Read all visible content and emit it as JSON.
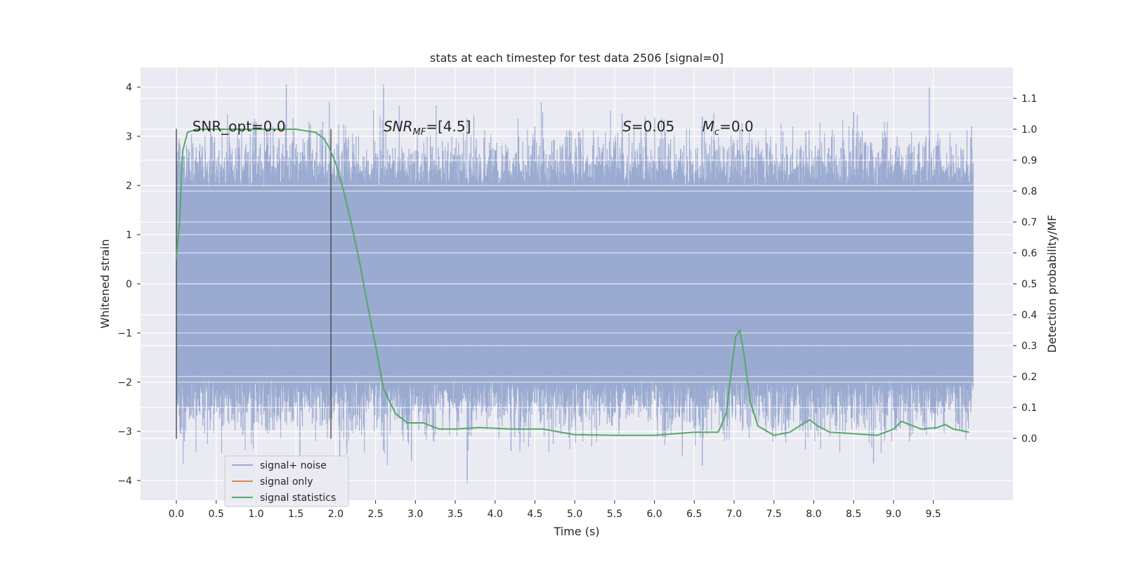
{
  "chart_data": {
    "type": "line",
    "title": "stats at each timestep for test data 2506 [signal=0]",
    "xlabel": "Time (s)",
    "ylabel": "Whitened strain",
    "y2label": "Detection probability/MF",
    "xlim": [
      -0.45,
      10.5
    ],
    "ylim": [
      -4.4,
      4.4
    ],
    "y2lim": [
      -0.2,
      1.2
    ],
    "xticks": [
      0.0,
      0.5,
      1.0,
      1.5,
      2.0,
      2.5,
      3.0,
      3.5,
      4.0,
      4.5,
      5.0,
      5.5,
      6.0,
      6.5,
      7.0,
      7.5,
      8.0,
      8.5,
      9.0,
      9.5
    ],
    "xtick_labels": [
      "0.0",
      "0.5",
      "1.0",
      "1.5",
      "2.0",
      "2.5",
      "3.0",
      "3.5",
      "4.0",
      "4.5",
      "5.0",
      "5.5",
      "6.0",
      "6.5",
      "7.0",
      "7.5",
      "8.0",
      "8.5",
      "9.0",
      "9.5"
    ],
    "yticks": [
      -4,
      -3,
      -2,
      -1,
      0,
      1,
      2,
      3,
      4
    ],
    "ytick_labels": [
      "−4",
      "−3",
      "−2",
      "−1",
      "0",
      "1",
      "2",
      "3",
      "4"
    ],
    "y2ticks": [
      0.0,
      0.1,
      0.2,
      0.3,
      0.4,
      0.5,
      0.6,
      0.7,
      0.8,
      0.9,
      1.0,
      1.1
    ],
    "y2tick_labels": [
      "0.0",
      "0.1",
      "0.2",
      "0.3",
      "0.4",
      "0.5",
      "0.6",
      "0.7",
      "0.8",
      "0.9",
      "1.0",
      "1.1"
    ],
    "grid": true,
    "annotations": [
      {
        "text": "SNR_opt=0.0",
        "x": 0.2,
        "y": 3.2
      },
      {
        "text": "SNR_MF=[4.5]",
        "x": 2.6,
        "y": 3.2
      },
      {
        "text": "S=0.05",
        "x": 5.6,
        "y": 3.2
      },
      {
        "text": "M_c=0.0",
        "x": 6.6,
        "y": 3.2
      }
    ],
    "vlines": [
      {
        "x": 0.0,
        "ymin": -3.15,
        "ymax": 3.15
      },
      {
        "x": 1.94,
        "ymin": -3.15,
        "ymax": 3.15
      }
    ],
    "legend_position": "lower-left",
    "series": [
      {
        "name": "signal+ noise",
        "color": "#9aaad0",
        "axis": "left",
        "style": "noise",
        "x_range": [
          0.0,
          10.0
        ],
        "core_range": [
          -2.3,
          2.3
        ],
        "peaks_upper": [
          {
            "x": 0.01,
            "y": 2.3
          },
          {
            "x": 0.45,
            "y": 3.0
          },
          {
            "x": 1.0,
            "y": 3.3
          },
          {
            "x": 1.38,
            "y": 4.05
          },
          {
            "x": 2.6,
            "y": 4.05
          },
          {
            "x": 4.5,
            "y": 3.2
          },
          {
            "x": 5.9,
            "y": 3.1
          },
          {
            "x": 6.6,
            "y": 3.4
          },
          {
            "x": 7.9,
            "y": 3.1
          },
          {
            "x": 8.5,
            "y": 3.5
          },
          {
            "x": 9.45,
            "y": 4.0
          },
          {
            "x": 9.98,
            "y": 3.2
          }
        ],
        "peaks_lower": [
          {
            "x": 0.1,
            "y": -3.2
          },
          {
            "x": 1.55,
            "y": -3.5
          },
          {
            "x": 2.05,
            "y": -3.6
          },
          {
            "x": 2.95,
            "y": -3.6
          },
          {
            "x": 3.65,
            "y": -4.05
          },
          {
            "x": 4.2,
            "y": -3.4
          },
          {
            "x": 6.35,
            "y": -3.3
          },
          {
            "x": 6.6,
            "y": -3.7
          },
          {
            "x": 8.75,
            "y": -3.65
          },
          {
            "x": 9.2,
            "y": -3.2
          }
        ]
      },
      {
        "name": "signal only",
        "color": "#dd8452",
        "axis": "left",
        "x": [],
        "y": []
      },
      {
        "name": "signal statistics",
        "color": "#55a868",
        "axis": "right",
        "x": [
          0.0,
          0.04,
          0.08,
          0.14,
          0.25,
          0.5,
          1.0,
          1.5,
          1.75,
          1.85,
          1.92,
          2.0,
          2.1,
          2.2,
          2.3,
          2.4,
          2.5,
          2.6,
          2.75,
          2.9,
          3.1,
          3.3,
          3.5,
          3.8,
          4.2,
          4.6,
          5.0,
          5.5,
          6.0,
          6.5,
          6.8,
          6.9,
          6.97,
          7.02,
          7.07,
          7.12,
          7.2,
          7.3,
          7.5,
          7.7,
          7.85,
          7.95,
          8.05,
          8.2,
          8.5,
          8.8,
          9.0,
          9.1,
          9.2,
          9.35,
          9.55,
          9.65,
          9.75,
          9.95
        ],
        "y": [
          0.58,
          0.7,
          0.93,
          0.99,
          1.0,
          1.0,
          1.0,
          1.0,
          0.99,
          0.97,
          0.94,
          0.89,
          0.8,
          0.69,
          0.57,
          0.43,
          0.3,
          0.16,
          0.08,
          0.05,
          0.05,
          0.03,
          0.03,
          0.035,
          0.03,
          0.03,
          0.012,
          0.01,
          0.01,
          0.02,
          0.02,
          0.08,
          0.23,
          0.33,
          0.35,
          0.28,
          0.12,
          0.04,
          0.01,
          0.02,
          0.045,
          0.06,
          0.04,
          0.02,
          0.015,
          0.01,
          0.03,
          0.055,
          0.045,
          0.03,
          0.035,
          0.045,
          0.03,
          0.02
        ]
      }
    ]
  }
}
